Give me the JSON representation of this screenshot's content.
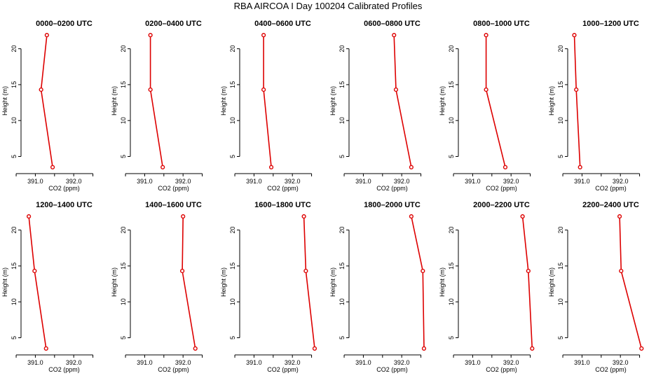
{
  "title": "RBA AIRCOA I  Day 100204  Calibrated Profiles",
  "chart_data": [
    {
      "type": "line",
      "title": "0000–0200 UTC",
      "xlabel": "CO2 (ppm)",
      "ylabel": "Height (m)",
      "xticks": [
        "391.0",
        "392.0"
      ],
      "yticks": [
        "5",
        "10",
        "15",
        "20"
      ],
      "xlim": [
        390.7,
        392.8
      ],
      "ylim": [
        3,
        22.5
      ],
      "series": [
        {
          "x": [
            391.45,
            391.15,
            391.3
          ],
          "y": [
            3.5,
            14.3,
            21.9
          ]
        }
      ]
    },
    {
      "type": "line",
      "title": "0200–0400 UTC",
      "xlabel": "CO2 (ppm)",
      "ylabel": "Height (m)",
      "xticks": [
        "391.0",
        "392.0"
      ],
      "yticks": [
        "5",
        "10",
        "15",
        "20"
      ],
      "xlim": [
        390.7,
        392.8
      ],
      "ylim": [
        3,
        22.5
      ],
      "series": [
        {
          "x": [
            391.47,
            391.15,
            391.15
          ],
          "y": [
            3.5,
            14.3,
            21.9
          ]
        }
      ]
    },
    {
      "type": "line",
      "title": "0400–0600 UTC",
      "xlabel": "CO2 (ppm)",
      "ylabel": "Height (m)",
      "xticks": [
        "391.0",
        "392.0"
      ],
      "yticks": [
        "5",
        "10",
        "15",
        "20"
      ],
      "xlim": [
        390.7,
        392.8
      ],
      "ylim": [
        3,
        22.5
      ],
      "series": [
        {
          "x": [
            391.45,
            391.25,
            391.25
          ],
          "y": [
            3.5,
            14.3,
            21.9
          ]
        }
      ]
    },
    {
      "type": "line",
      "title": "0600–0800 UTC",
      "xlabel": "CO2 (ppm)",
      "ylabel": "Height (m)",
      "xticks": [
        "391.0",
        "392.0"
      ],
      "yticks": [
        "5",
        "10",
        "15",
        "20"
      ],
      "xlim": [
        390.7,
        392.8
      ],
      "ylim": [
        3,
        22.5
      ],
      "series": [
        {
          "x": [
            392.25,
            391.85,
            391.8
          ],
          "y": [
            3.5,
            14.3,
            21.9
          ]
        }
      ]
    },
    {
      "type": "line",
      "title": "0800–1000 UTC",
      "xlabel": "CO2 (ppm)",
      "ylabel": "Height (m)",
      "xticks": [
        "391.0",
        "392.0"
      ],
      "yticks": [
        "5",
        "10",
        "15",
        "20"
      ],
      "xlim": [
        390.7,
        392.8
      ],
      "ylim": [
        3,
        22.5
      ],
      "series": [
        {
          "x": [
            391.85,
            391.35,
            391.35
          ],
          "y": [
            3.5,
            14.3,
            21.9
          ]
        }
      ]
    },
    {
      "type": "line",
      "title": "1000–1200 UTC",
      "xlabel": "CO2 (ppm)",
      "ylabel": "Height (m)",
      "xticks": [
        "391.0",
        "392.0"
      ],
      "yticks": [
        "5",
        "10",
        "15",
        "20"
      ],
      "xlim": [
        390.7,
        392.8
      ],
      "ylim": [
        3,
        22.5
      ],
      "series": [
        {
          "x": [
            390.95,
            390.85,
            390.8
          ],
          "y": [
            3.5,
            14.3,
            21.9
          ]
        }
      ]
    },
    {
      "type": "line",
      "title": "1200–1400 UTC",
      "xlabel": "CO2 (ppm)",
      "ylabel": "Height (m)",
      "xticks": [
        "391.0",
        "392.0"
      ],
      "yticks": [
        "5",
        "10",
        "15",
        "20"
      ],
      "xlim": [
        390.7,
        392.8
      ],
      "ylim": [
        3,
        22.5
      ],
      "series": [
        {
          "x": [
            391.28,
            390.98,
            390.83
          ],
          "y": [
            3.5,
            14.3,
            21.9
          ]
        }
      ]
    },
    {
      "type": "line",
      "title": "1400–1600 UTC",
      "xlabel": "CO2 (ppm)",
      "ylabel": "Height (m)",
      "xticks": [
        "391.0",
        "392.0"
      ],
      "yticks": [
        "5",
        "10",
        "15",
        "20"
      ],
      "xlim": [
        390.7,
        392.8
      ],
      "ylim": [
        3,
        22.5
      ],
      "series": [
        {
          "x": [
            392.32,
            391.98,
            392.0
          ],
          "y": [
            3.5,
            14.3,
            21.9
          ]
        }
      ]
    },
    {
      "type": "line",
      "title": "1600–1800 UTC",
      "xlabel": "CO2 (ppm)",
      "ylabel": "Height (m)",
      "xticks": [
        "391.0",
        "392.0"
      ],
      "yticks": [
        "5",
        "10",
        "15",
        "20"
      ],
      "xlim": [
        390.7,
        392.8
      ],
      "ylim": [
        3,
        22.5
      ],
      "series": [
        {
          "x": [
            392.58,
            392.35,
            392.3
          ],
          "y": [
            3.5,
            14.3,
            21.9
          ]
        }
      ]
    },
    {
      "type": "line",
      "title": "1800–2000 UTC",
      "xlabel": "CO2 (ppm)",
      "ylabel": "Height (m)",
      "xticks": [
        "391.0",
        "392.0"
      ],
      "yticks": [
        "5",
        "10",
        "15",
        "20"
      ],
      "xlim": [
        390.7,
        392.8
      ],
      "ylim": [
        3,
        22.5
      ],
      "series": [
        {
          "x": [
            392.58,
            392.55,
            392.25
          ],
          "y": [
            3.5,
            14.3,
            21.9
          ]
        }
      ]
    },
    {
      "type": "line",
      "title": "2000–2200 UTC",
      "xlabel": "CO2 (ppm)",
      "ylabel": "Height (m)",
      "xticks": [
        "391.0",
        "392.0"
      ],
      "yticks": [
        "5",
        "10",
        "15",
        "20"
      ],
      "xlim": [
        390.7,
        392.8
      ],
      "ylim": [
        3,
        22.5
      ],
      "series": [
        {
          "x": [
            392.55,
            392.45,
            392.3
          ],
          "y": [
            3.5,
            14.3,
            21.9
          ]
        }
      ]
    },
    {
      "type": "line",
      "title": "2200–2400 UTC",
      "xlabel": "CO2 (ppm)",
      "ylabel": "Height (m)",
      "xticks": [
        "391.0",
        "392.0"
      ],
      "yticks": [
        "5",
        "10",
        "15",
        "20"
      ],
      "xlim": [
        390.7,
        392.8
      ],
      "ylim": [
        3,
        22.5
      ],
      "series": [
        {
          "x": [
            392.55,
            392.02,
            391.98
          ],
          "y": [
            3.5,
            14.3,
            21.9
          ]
        }
      ]
    }
  ],
  "colors": {
    "series": "#dd0000",
    "axis": "#000000"
  }
}
